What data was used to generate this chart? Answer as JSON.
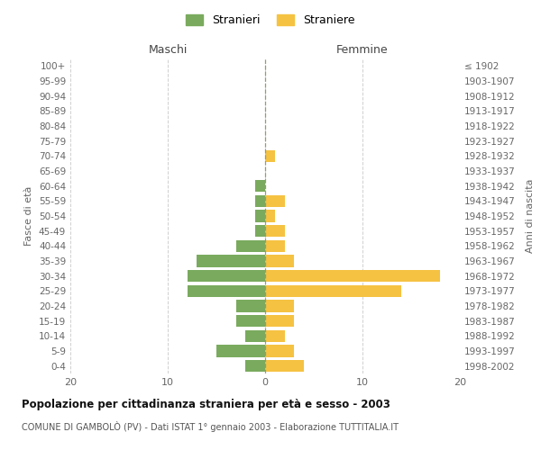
{
  "age_groups": [
    "0-4",
    "5-9",
    "10-14",
    "15-19",
    "20-24",
    "25-29",
    "30-34",
    "35-39",
    "40-44",
    "45-49",
    "50-54",
    "55-59",
    "60-64",
    "65-69",
    "70-74",
    "75-79",
    "80-84",
    "85-89",
    "90-94",
    "95-99",
    "100+"
  ],
  "birth_years": [
    "1998-2002",
    "1993-1997",
    "1988-1992",
    "1983-1987",
    "1978-1982",
    "1973-1977",
    "1968-1972",
    "1963-1967",
    "1958-1962",
    "1953-1957",
    "1948-1952",
    "1943-1947",
    "1938-1942",
    "1933-1937",
    "1928-1932",
    "1923-1927",
    "1918-1922",
    "1913-1917",
    "1908-1912",
    "1903-1907",
    "≤ 1902"
  ],
  "stranieri": [
    2,
    5,
    2,
    3,
    3,
    8,
    8,
    7,
    3,
    1,
    1,
    1,
    1,
    0,
    0,
    0,
    0,
    0,
    0,
    0,
    0
  ],
  "straniere": [
    4,
    3,
    2,
    3,
    3,
    14,
    18,
    3,
    2,
    2,
    1,
    2,
    0,
    0,
    1,
    0,
    0,
    0,
    0,
    0,
    0
  ],
  "color_stranieri": "#7aaa5e",
  "color_straniere": "#f5c242",
  "title_main": "Popolazione per cittadinanza straniera per età e sesso - 2003",
  "title_sub": "COMUNE DI GAMBOLÒ (PV) - Dati ISTAT 1° gennaio 2003 - Elaborazione TUTTITALIA.IT",
  "xlabel_left": "Maschi",
  "xlabel_right": "Femmine",
  "ylabel_left": "Fasce di età",
  "ylabel_right": "Anni di nascita",
  "legend_stranieri": "Stranieri",
  "legend_straniere": "Straniere",
  "xlim": 20,
  "background_color": "#ffffff",
  "grid_color": "#d0d0d0"
}
